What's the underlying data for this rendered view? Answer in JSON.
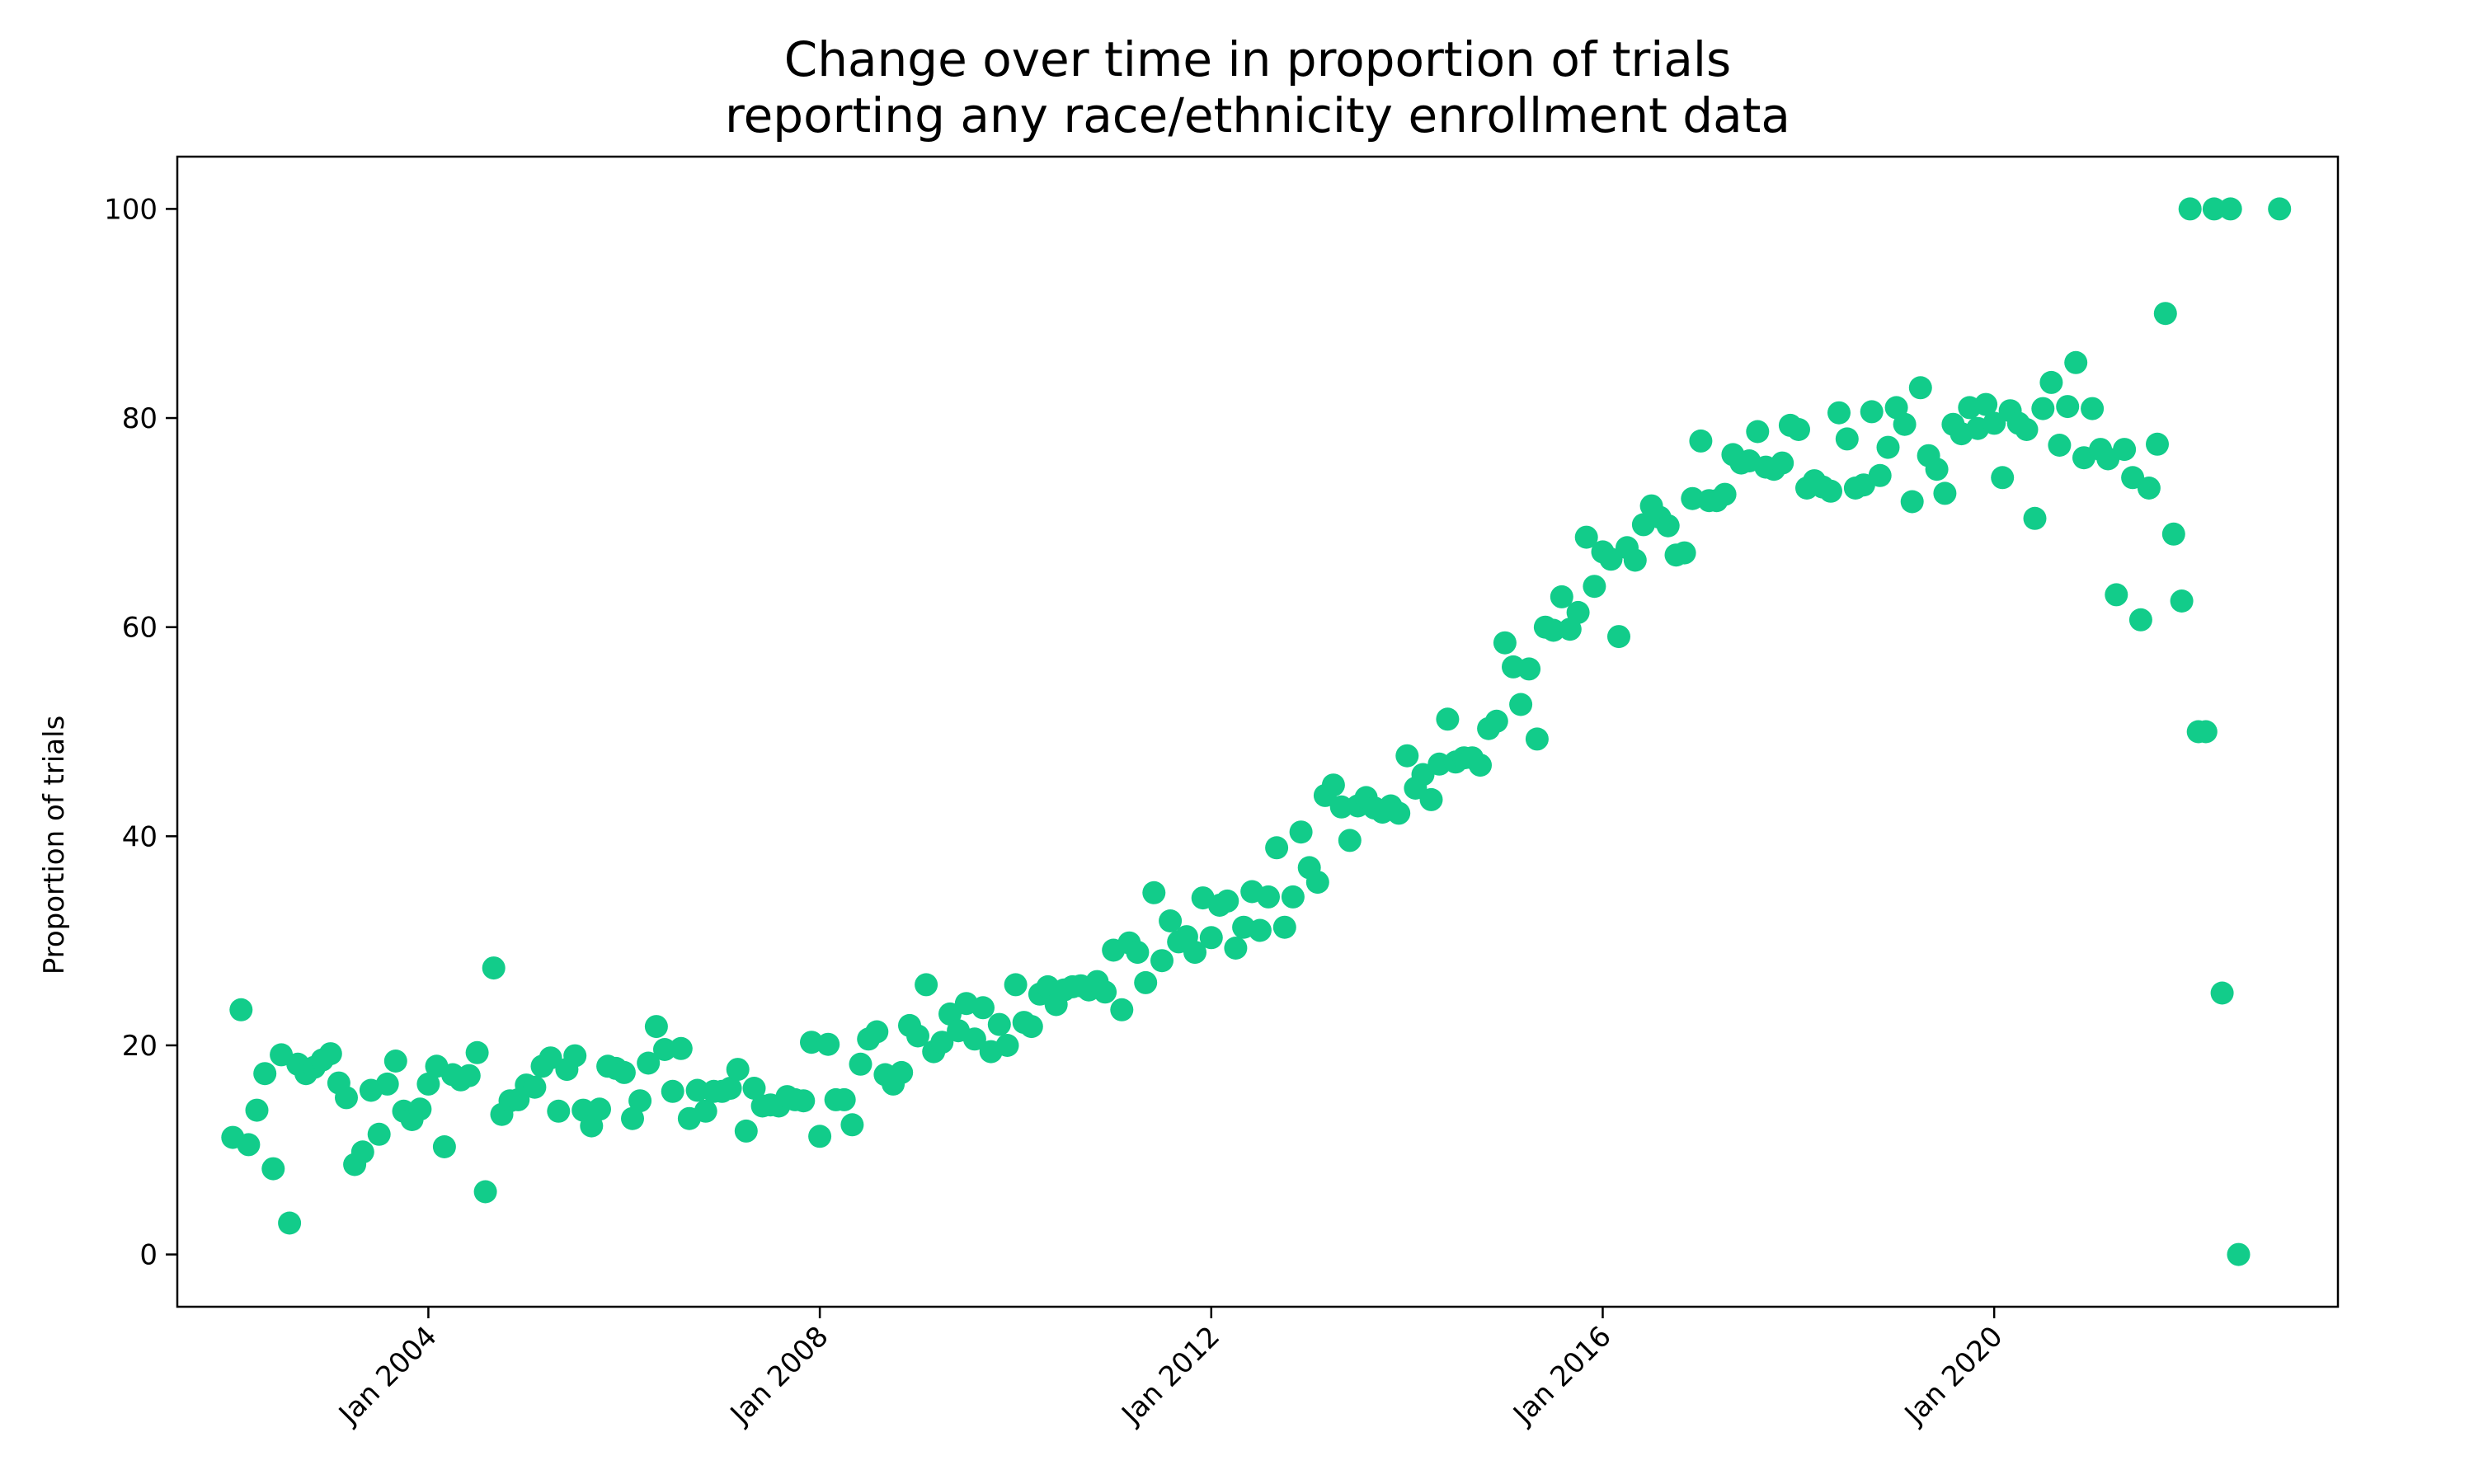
{
  "chart_data": {
    "type": "scatter",
    "title": [
      "Change over time in proportion of trials",
      "reporting any race/ethnicity enrollment data"
    ],
    "xlabel": "",
    "ylabel": "Proportion of trials",
    "xlim": [
      "2001-06-08",
      "2023-07-07"
    ],
    "ylim": [
      -5,
      105
    ],
    "xticks": [
      {
        "date": "2004-01-01",
        "label": "Jan 2004"
      },
      {
        "date": "2008-01-01",
        "label": "Jan 2008"
      },
      {
        "date": "2012-01-01",
        "label": "Jan 2012"
      },
      {
        "date": "2016-01-01",
        "label": "Jan 2016"
      },
      {
        "date": "2020-01-01",
        "label": "Jan 2020"
      }
    ],
    "yticks": [
      0,
      20,
      40,
      60,
      80,
      100
    ],
    "grid": false,
    "marker_color": "#12cc8a",
    "points": [
      [
        "2002-01-01",
        11.2
      ],
      [
        "2002-02-01",
        23.4
      ],
      [
        "2002-03-01",
        10.5
      ],
      [
        "2002-04-01",
        13.8
      ],
      [
        "2002-05-01",
        17.3
      ],
      [
        "2002-06-01",
        8.2
      ],
      [
        "2002-07-01",
        19.1
      ],
      [
        "2002-08-01",
        3.0
      ],
      [
        "2002-09-01",
        18.2
      ],
      [
        "2002-10-01",
        17.3
      ],
      [
        "2002-11-01",
        17.9
      ],
      [
        "2002-12-01",
        18.6
      ],
      [
        "2003-01-01",
        19.2
      ],
      [
        "2003-02-01",
        16.4
      ],
      [
        "2003-03-01",
        15.0
      ],
      [
        "2003-04-01",
        8.6
      ],
      [
        "2003-05-01",
        9.8
      ],
      [
        "2003-06-01",
        15.7
      ],
      [
        "2003-07-01",
        11.5
      ],
      [
        "2003-08-01",
        16.3
      ],
      [
        "2003-09-01",
        18.5
      ],
      [
        "2003-10-01",
        13.7
      ],
      [
        "2003-11-01",
        12.9
      ],
      [
        "2003-12-01",
        13.9
      ],
      [
        "2004-01-01",
        16.3
      ],
      [
        "2004-02-01",
        18.0
      ],
      [
        "2004-03-01",
        10.3
      ],
      [
        "2004-04-01",
        17.2
      ],
      [
        "2004-05-01",
        16.7
      ],
      [
        "2004-06-01",
        17.1
      ],
      [
        "2004-07-01",
        19.3
      ],
      [
        "2004-08-01",
        6.0
      ],
      [
        "2004-09-01",
        27.4
      ],
      [
        "2004-10-01",
        13.4
      ],
      [
        "2004-11-01",
        14.7
      ],
      [
        "2004-12-01",
        14.8
      ],
      [
        "2005-01-01",
        16.2
      ],
      [
        "2005-02-01",
        16.0
      ],
      [
        "2005-03-01",
        18.0
      ],
      [
        "2005-04-01",
        18.8
      ],
      [
        "2005-05-01",
        13.7
      ],
      [
        "2005-06-01",
        17.7
      ],
      [
        "2005-07-01",
        19.0
      ],
      [
        "2005-08-01",
        13.8
      ],
      [
        "2005-09-01",
        12.3
      ],
      [
        "2005-10-01",
        13.9
      ],
      [
        "2005-11-01",
        18.0
      ],
      [
        "2005-12-01",
        17.8
      ],
      [
        "2006-01-01",
        17.4
      ],
      [
        "2006-02-01",
        13.0
      ],
      [
        "2006-03-01",
        14.7
      ],
      [
        "2006-04-01",
        18.3
      ],
      [
        "2006-05-01",
        21.8
      ],
      [
        "2006-06-01",
        19.6
      ],
      [
        "2006-07-01",
        15.6
      ],
      [
        "2006-08-01",
        19.7
      ],
      [
        "2006-09-01",
        13.0
      ],
      [
        "2006-10-01",
        15.7
      ],
      [
        "2006-11-01",
        13.7
      ],
      [
        "2006-12-01",
        15.6
      ],
      [
        "2007-01-01",
        15.6
      ],
      [
        "2007-02-01",
        15.9
      ],
      [
        "2007-03-01",
        17.7
      ],
      [
        "2007-04-01",
        11.8
      ],
      [
        "2007-05-01",
        15.9
      ],
      [
        "2007-06-01",
        14.2
      ],
      [
        "2007-07-01",
        14.3
      ],
      [
        "2007-08-01",
        14.2
      ],
      [
        "2007-09-01",
        15.1
      ],
      [
        "2007-10-01",
        14.8
      ],
      [
        "2007-11-01",
        14.7
      ],
      [
        "2007-12-01",
        20.3
      ],
      [
        "2008-01-01",
        11.3
      ],
      [
        "2008-02-01",
        20.1
      ],
      [
        "2008-03-01",
        14.8
      ],
      [
        "2008-04-01",
        14.8
      ],
      [
        "2008-05-01",
        12.4
      ],
      [
        "2008-06-01",
        18.2
      ],
      [
        "2008-07-01",
        20.6
      ],
      [
        "2008-08-01",
        21.3
      ],
      [
        "2008-09-01",
        17.2
      ],
      [
        "2008-10-01",
        16.3
      ],
      [
        "2008-11-01",
        17.4
      ],
      [
        "2008-12-01",
        21.9
      ],
      [
        "2009-01-01",
        20.9
      ],
      [
        "2009-02-01",
        25.8
      ],
      [
        "2009-03-01",
        19.4
      ],
      [
        "2009-04-01",
        20.3
      ],
      [
        "2009-05-01",
        23.0
      ],
      [
        "2009-06-01",
        21.4
      ],
      [
        "2009-07-01",
        24.0
      ],
      [
        "2009-08-01",
        20.6
      ],
      [
        "2009-09-01",
        23.6
      ],
      [
        "2009-10-01",
        19.4
      ],
      [
        "2009-11-01",
        22.0
      ],
      [
        "2009-12-01",
        20.0
      ],
      [
        "2010-01-01",
        25.8
      ],
      [
        "2010-02-01",
        22.2
      ],
      [
        "2010-03-01",
        21.8
      ],
      [
        "2010-04-01",
        24.9
      ],
      [
        "2010-05-01",
        25.6
      ],
      [
        "2010-06-01",
        23.9
      ],
      [
        "2010-07-01",
        25.3
      ],
      [
        "2010-08-01",
        25.6
      ],
      [
        "2010-09-01",
        25.7
      ],
      [
        "2010-10-01",
        25.3
      ],
      [
        "2010-11-01",
        26.1
      ],
      [
        "2010-12-01",
        25.1
      ],
      [
        "2011-01-01",
        29.1
      ],
      [
        "2011-02-01",
        23.4
      ],
      [
        "2011-03-01",
        29.8
      ],
      [
        "2011-04-01",
        28.9
      ],
      [
        "2011-05-01",
        26.0
      ],
      [
        "2011-06-01",
        34.6
      ],
      [
        "2011-07-01",
        28.1
      ],
      [
        "2011-08-01",
        31.9
      ],
      [
        "2011-09-01",
        29.9
      ],
      [
        "2011-10-01",
        30.4
      ],
      [
        "2011-11-01",
        28.9
      ],
      [
        "2011-12-01",
        34.1
      ],
      [
        "2012-01-01",
        30.3
      ],
      [
        "2012-02-01",
        33.4
      ],
      [
        "2012-03-01",
        33.8
      ],
      [
        "2012-04-01",
        29.3
      ],
      [
        "2012-05-01",
        31.3
      ],
      [
        "2012-06-01",
        34.7
      ],
      [
        "2012-07-01",
        31.0
      ],
      [
        "2012-08-01",
        34.2
      ],
      [
        "2012-09-01",
        38.9
      ],
      [
        "2012-10-01",
        31.3
      ],
      [
        "2012-11-01",
        34.2
      ],
      [
        "2012-12-01",
        40.4
      ],
      [
        "2013-01-01",
        37.0
      ],
      [
        "2013-02-01",
        35.6
      ],
      [
        "2013-03-01",
        43.9
      ],
      [
        "2013-04-01",
        44.9
      ],
      [
        "2013-05-01",
        42.8
      ],
      [
        "2013-06-01",
        39.6
      ],
      [
        "2013-07-01",
        42.9
      ],
      [
        "2013-08-01",
        43.7
      ],
      [
        "2013-09-01",
        42.7
      ],
      [
        "2013-10-01",
        42.3
      ],
      [
        "2013-11-01",
        42.9
      ],
      [
        "2013-12-01",
        42.2
      ],
      [
        "2014-01-01",
        47.7
      ],
      [
        "2014-02-01",
        44.6
      ],
      [
        "2014-03-01",
        45.9
      ],
      [
        "2014-04-01",
        43.5
      ],
      [
        "2014-05-01",
        46.9
      ],
      [
        "2014-06-01",
        51.2
      ],
      [
        "2014-07-01",
        47.1
      ],
      [
        "2014-08-01",
        47.5
      ],
      [
        "2014-09-01",
        47.5
      ],
      [
        "2014-10-01",
        46.8
      ],
      [
        "2014-11-01",
        50.3
      ],
      [
        "2014-12-01",
        51.0
      ],
      [
        "2015-01-01",
        58.5
      ],
      [
        "2015-02-01",
        56.2
      ],
      [
        "2015-03-01",
        52.6
      ],
      [
        "2015-04-01",
        56.0
      ],
      [
        "2015-05-01",
        49.3
      ],
      [
        "2015-06-01",
        60.0
      ],
      [
        "2015-07-01",
        59.7
      ],
      [
        "2015-08-01",
        62.9
      ],
      [
        "2015-09-01",
        59.8
      ],
      [
        "2015-10-01",
        61.4
      ],
      [
        "2015-11-01",
        68.6
      ],
      [
        "2015-12-01",
        63.9
      ],
      [
        "2016-01-01",
        67.2
      ],
      [
        "2016-02-01",
        66.5
      ],
      [
        "2016-03-01",
        59.1
      ],
      [
        "2016-04-01",
        67.6
      ],
      [
        "2016-05-01",
        66.4
      ],
      [
        "2016-06-01",
        69.8
      ],
      [
        "2016-07-01",
        71.6
      ],
      [
        "2016-08-01",
        70.5
      ],
      [
        "2016-09-01",
        69.7
      ],
      [
        "2016-10-01",
        66.9
      ],
      [
        "2016-11-01",
        67.1
      ],
      [
        "2016-12-01",
        72.3
      ],
      [
        "2017-01-01",
        77.8
      ],
      [
        "2017-02-01",
        72.1
      ],
      [
        "2017-03-01",
        72.1
      ],
      [
        "2017-04-01",
        72.7
      ],
      [
        "2017-05-01",
        76.5
      ],
      [
        "2017-06-01",
        75.7
      ],
      [
        "2017-07-01",
        75.9
      ],
      [
        "2017-08-01",
        78.7
      ],
      [
        "2017-09-01",
        75.3
      ],
      [
        "2017-10-01",
        75.1
      ],
      [
        "2017-11-01",
        75.7
      ],
      [
        "2017-12-01",
        79.3
      ],
      [
        "2018-01-01",
        78.9
      ],
      [
        "2018-02-01",
        73.3
      ],
      [
        "2018-03-01",
        74.0
      ],
      [
        "2018-04-01",
        73.4
      ],
      [
        "2018-05-01",
        73.0
      ],
      [
        "2018-06-01",
        80.5
      ],
      [
        "2018-07-01",
        78.0
      ],
      [
        "2018-08-01",
        73.3
      ],
      [
        "2018-09-01",
        73.6
      ],
      [
        "2018-10-01",
        80.6
      ],
      [
        "2018-11-01",
        74.5
      ],
      [
        "2018-12-01",
        77.2
      ],
      [
        "2019-01-01",
        81.0
      ],
      [
        "2019-02-01",
        79.4
      ],
      [
        "2019-03-01",
        72.0
      ],
      [
        "2019-04-01",
        82.9
      ],
      [
        "2019-05-01",
        76.4
      ],
      [
        "2019-06-01",
        75.1
      ],
      [
        "2019-07-01",
        72.8
      ],
      [
        "2019-08-01",
        79.4
      ],
      [
        "2019-09-01",
        78.5
      ],
      [
        "2019-10-01",
        81.0
      ],
      [
        "2019-11-01",
        79.0
      ],
      [
        "2019-12-01",
        81.3
      ],
      [
        "2020-01-01",
        79.5
      ],
      [
        "2020-02-01",
        74.3
      ],
      [
        "2020-03-01",
        80.7
      ],
      [
        "2020-04-01",
        79.5
      ],
      [
        "2020-05-01",
        78.9
      ],
      [
        "2020-06-01",
        70.4
      ],
      [
        "2020-07-01",
        80.9
      ],
      [
        "2020-08-01",
        83.4
      ],
      [
        "2020-09-01",
        77.4
      ],
      [
        "2020-10-01",
        81.1
      ],
      [
        "2020-11-01",
        85.3
      ],
      [
        "2020-12-01",
        76.2
      ],
      [
        "2021-01-01",
        80.9
      ],
      [
        "2021-02-01",
        77.0
      ],
      [
        "2021-03-01",
        76.1
      ],
      [
        "2021-04-01",
        63.1
      ],
      [
        "2021-05-01",
        77.0
      ],
      [
        "2021-06-01",
        74.3
      ],
      [
        "2021-07-01",
        60.7
      ],
      [
        "2021-08-01",
        73.3
      ],
      [
        "2021-09-01",
        77.5
      ],
      [
        "2021-10-01",
        90.0
      ],
      [
        "2021-11-01",
        68.9
      ],
      [
        "2021-12-01",
        62.5
      ],
      [
        "2022-01-01",
        100.0
      ],
      [
        "2022-02-01",
        50.0
      ],
      [
        "2022-03-01",
        50.0
      ],
      [
        "2022-04-01",
        100.0
      ],
      [
        "2022-05-01",
        25.0
      ],
      [
        "2022-06-01",
        100.0
      ],
      [
        "2022-07-01",
        0.0
      ],
      [
        "2022-12-01",
        100.0
      ]
    ]
  }
}
